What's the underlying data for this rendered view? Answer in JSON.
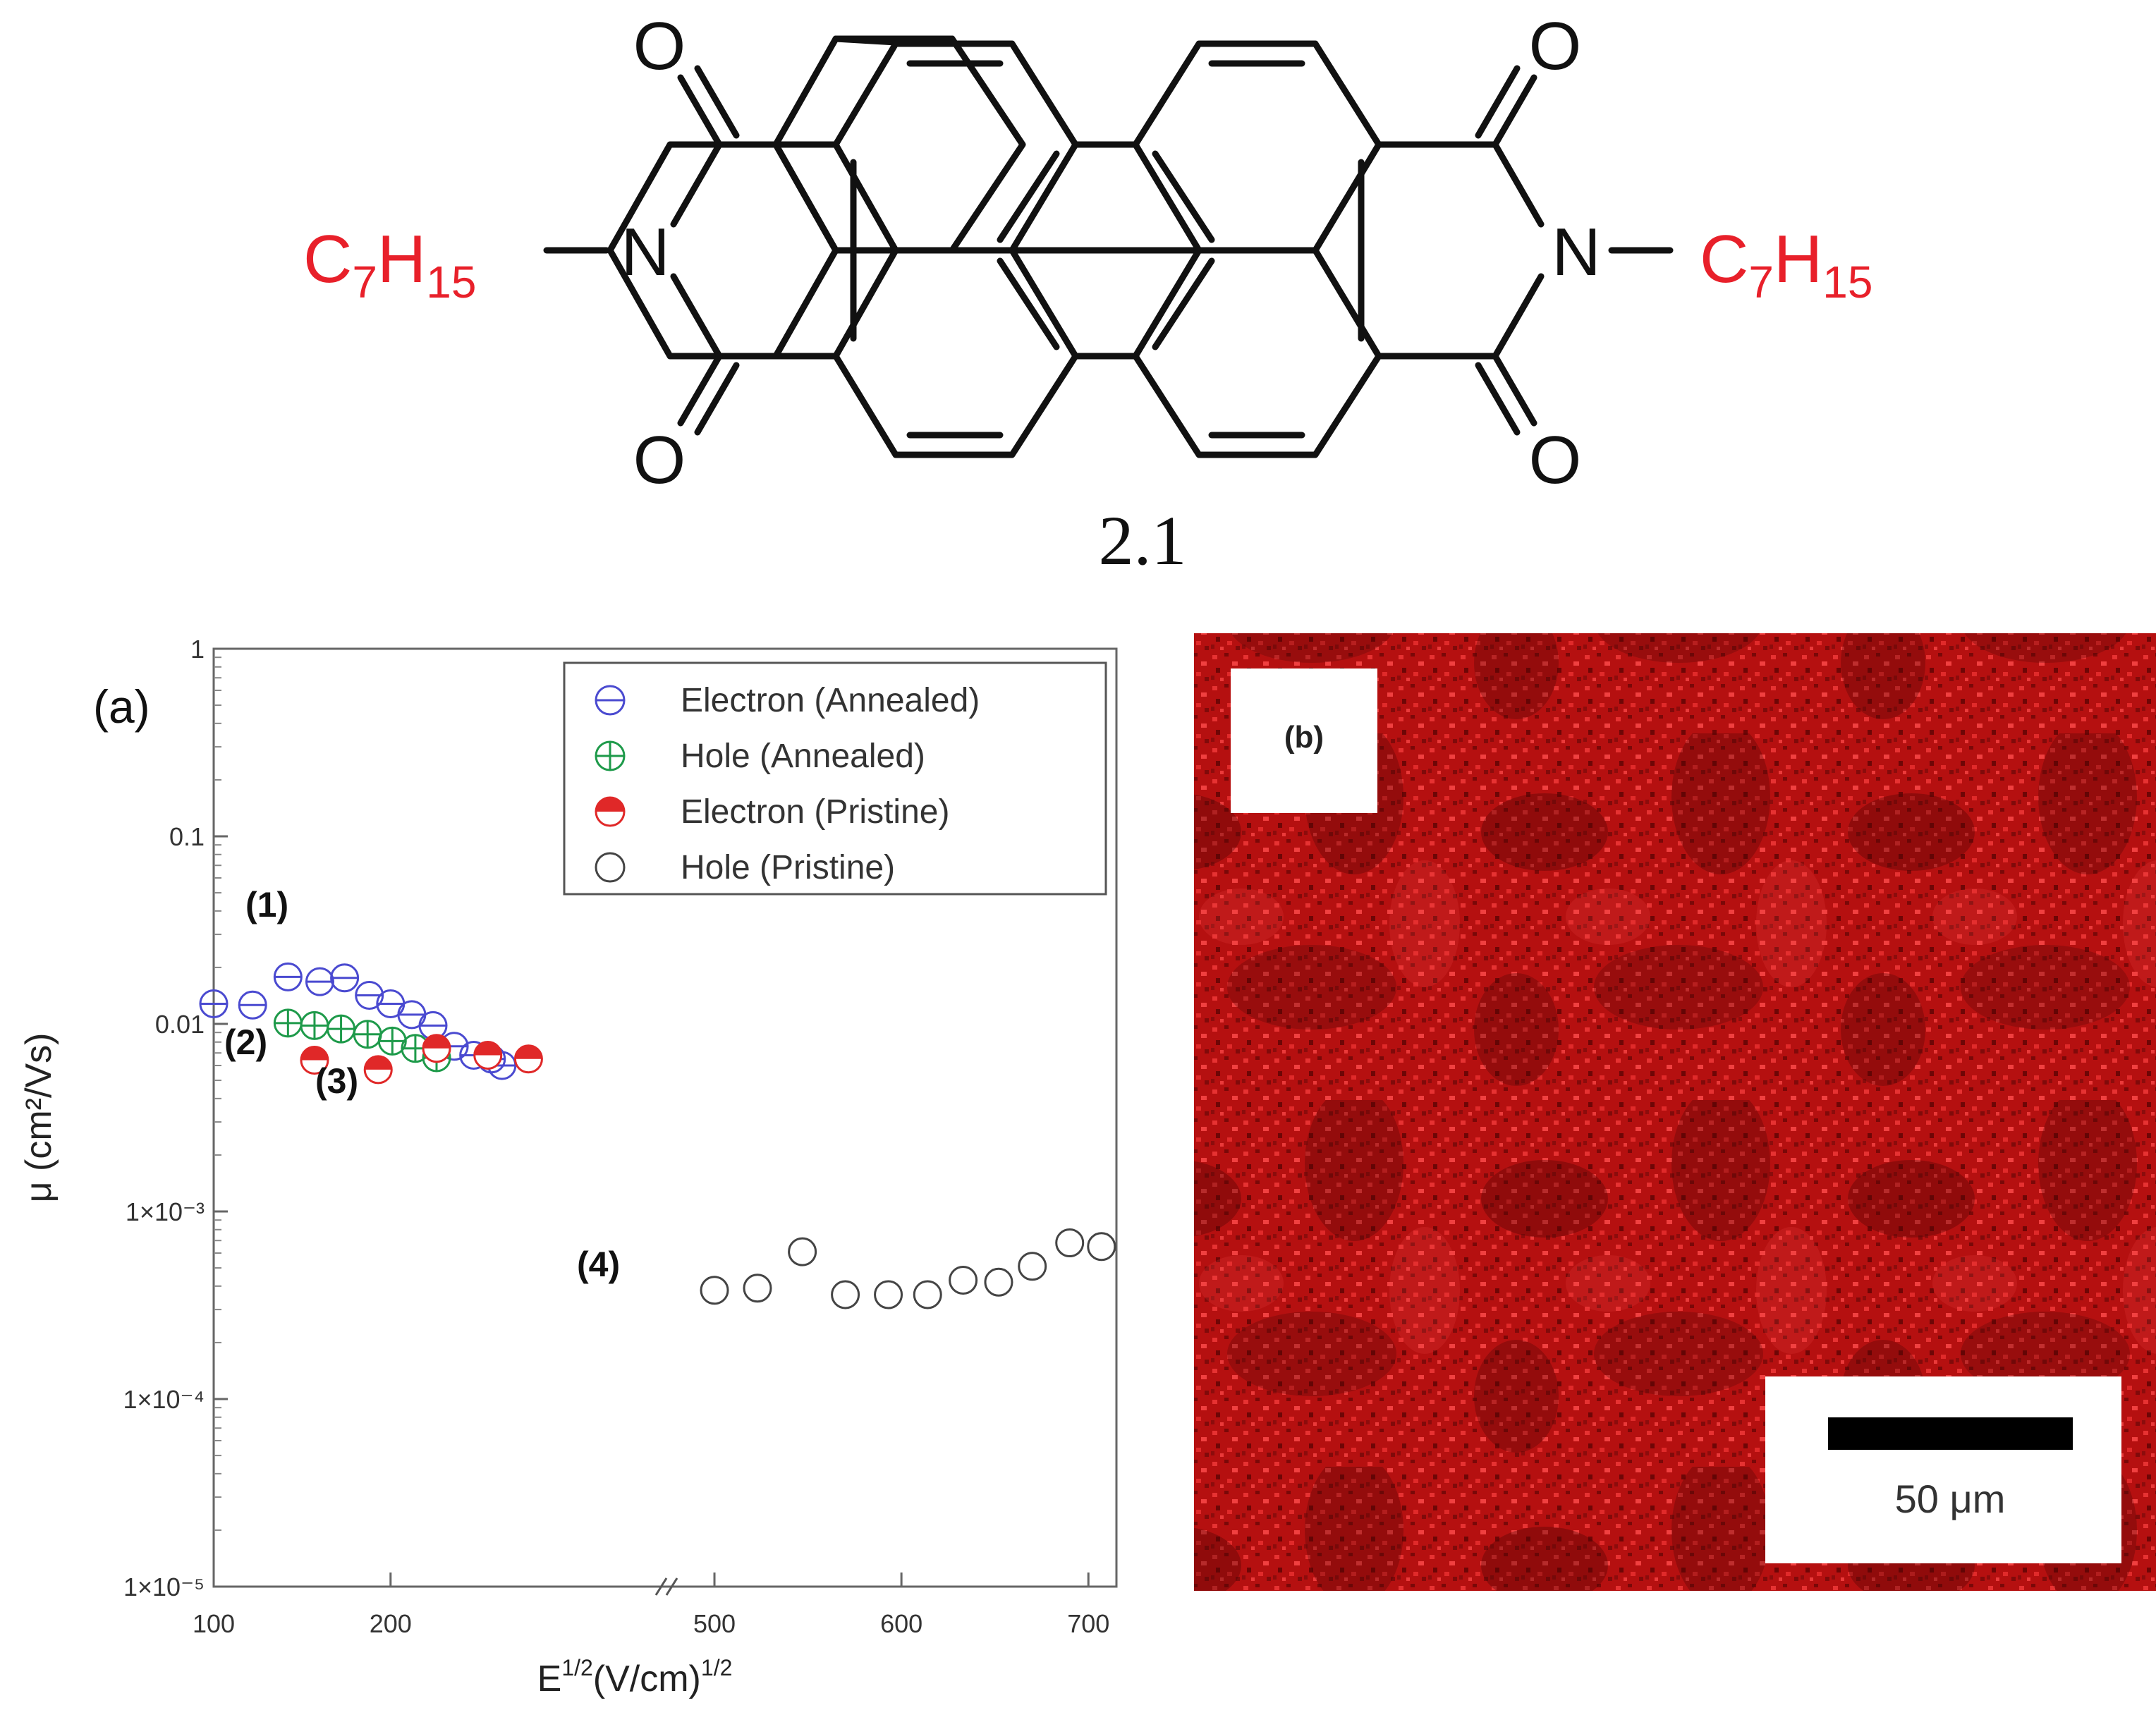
{
  "structure": {
    "compound_label": "2.1",
    "left_substituent": {
      "main": "C",
      "sub1": "7",
      "mid": "H",
      "sub2": "15"
    },
    "right_substituent": {
      "main": "C",
      "sub1": "7",
      "mid": "H",
      "sub2": "15"
    },
    "nitrogen": "N",
    "oxygen": "O",
    "substituent_color": "#e8202a"
  },
  "panel_a": {
    "panel_label": "(a)",
    "annotations": [
      "(1)",
      "(2)",
      "(3)",
      "(4)"
    ]
  },
  "panel_b": {
    "panel_label": "(b)",
    "scale_bar_label": "50 μm",
    "image_color": "#c01414"
  },
  "chart_data": {
    "type": "scatter",
    "xlabel": "E^1/2(V/cm)^1/2",
    "ylabel": "μ (cm²/Vs)",
    "y_scale": "log",
    "ylim": [
      1e-05,
      1
    ],
    "y_ticks": [
      {
        "value": 1,
        "label": "1"
      },
      {
        "value": 0.1,
        "label": "0.1"
      },
      {
        "value": 0.01,
        "label": "0.01"
      },
      {
        "value": 0.001,
        "label": "1×10⁻³"
      },
      {
        "value": 0.0001,
        "label": "1×10⁻⁴"
      },
      {
        "value": 1e-05,
        "label": "1×10⁻⁵"
      }
    ],
    "x_axis": "broken",
    "x_segments": [
      {
        "range": [
          100,
          350
        ],
        "ticks": [
          100,
          200
        ]
      },
      {
        "range": [
          480,
          715
        ],
        "ticks": [
          500,
          600,
          700
        ]
      }
    ],
    "x_tick_labels": [
      "100",
      "200",
      "500",
      "600",
      "700"
    ],
    "grid": false,
    "legend_position": "top-right",
    "series": [
      {
        "name": "Electron (Annealed)",
        "color": "#4a4ad0",
        "marker": "circle-minus",
        "x": [
          100,
          122,
          142,
          160,
          174,
          188,
          200,
          212,
          224,
          236,
          247,
          257,
          263
        ],
        "y": [
          0.0128,
          0.0126,
          0.0178,
          0.0168,
          0.0176,
          0.0142,
          0.0128,
          0.0112,
          0.0098,
          0.0076,
          0.0068,
          0.0065,
          0.006
        ]
      },
      {
        "name": "Hole (Annealed)",
        "color": "#1e9a4a",
        "marker": "circle-plus",
        "x": [
          142,
          157,
          172,
          187,
          201,
          214,
          226
        ],
        "y": [
          0.0101,
          0.0098,
          0.0094,
          0.0088,
          0.0081,
          0.0074,
          0.0066
        ]
      },
      {
        "name": "Electron (Pristine)",
        "color": "#e02828",
        "marker": "half-filled-circle",
        "x": [
          157,
          193,
          226,
          255,
          278
        ],
        "y": [
          0.0064,
          0.0057,
          0.0074,
          0.0068,
          0.0065
        ]
      },
      {
        "name": "Hole (Pristine)",
        "color": "#444444",
        "marker": "open-circle",
        "x": [
          500,
          523,
          547,
          570,
          593,
          614,
          633,
          652,
          670,
          690,
          707
        ],
        "y": [
          0.00038,
          0.00039,
          0.00061,
          0.00036,
          0.00036,
          0.00036,
          0.00043,
          0.00042,
          0.00051,
          0.00068,
          0.00065
        ]
      }
    ]
  }
}
